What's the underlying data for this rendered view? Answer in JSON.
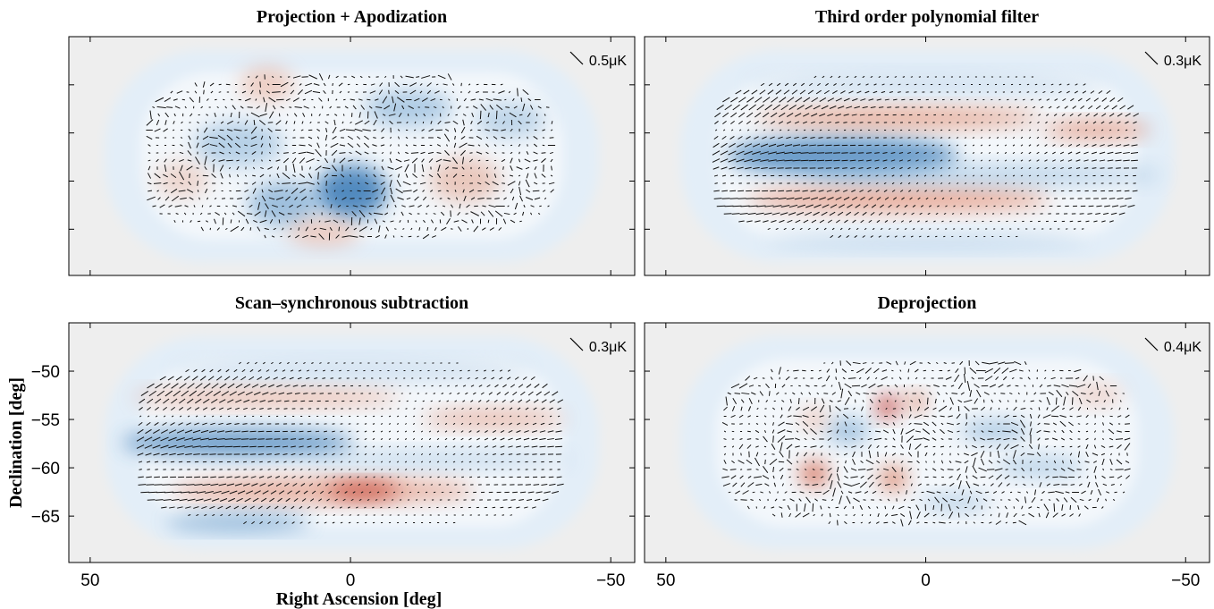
{
  "chart_data": [
    {
      "type": "map",
      "title": "Projection + Apodization",
      "scale_label": "0.5μK",
      "xlim": [
        54.1,
        -54.6
      ],
      "ylim": [
        -69.8,
        -45
      ],
      "xticks": [
        50,
        0,
        -50
      ],
      "yticks": [
        -50,
        -55,
        -60,
        -65
      ],
      "xtick_labels": false,
      "ytick_labels": false
    },
    {
      "type": "map",
      "title": "Third order polynomial filter",
      "scale_label": "0.3μK",
      "xlim": [
        54.1,
        -54.6
      ],
      "ylim": [
        -69.8,
        -45
      ],
      "xticks": [
        50,
        0,
        -50
      ],
      "yticks": [
        -50,
        -55,
        -60,
        -65
      ],
      "xtick_labels": false,
      "ytick_labels": false
    },
    {
      "type": "map",
      "title": "Scan–synchronous subtraction",
      "scale_label": "0.3μK",
      "xlabel": "Right Ascension [deg]",
      "ylabel": "Declination [deg]",
      "xlim": [
        54.1,
        -54.6
      ],
      "ylim": [
        -69.8,
        -45
      ],
      "xticks": [
        50,
        0,
        {
          "value": -50,
          "label": "−50"
        }
      ],
      "yticks": [
        {
          "value": -50,
          "label": "−50"
        },
        {
          "value": -55,
          "label": "−55"
        },
        {
          "value": -60,
          "label": "−60"
        },
        {
          "value": -65,
          "label": "−65"
        }
      ],
      "xtick_labels": true,
      "ytick_labels": true
    },
    {
      "type": "map",
      "title": "Deprojection",
      "scale_label": "0.4μK",
      "xlim": [
        54.1,
        -54.6
      ],
      "ylim": [
        -69.8,
        -45
      ],
      "xticks": [
        50,
        0,
        {
          "value": -50,
          "label": "−50"
        }
      ],
      "yticks": [
        -50,
        -55,
        -60,
        -65
      ],
      "xtick_labels": true,
      "ytick_labels": false
    }
  ]
}
